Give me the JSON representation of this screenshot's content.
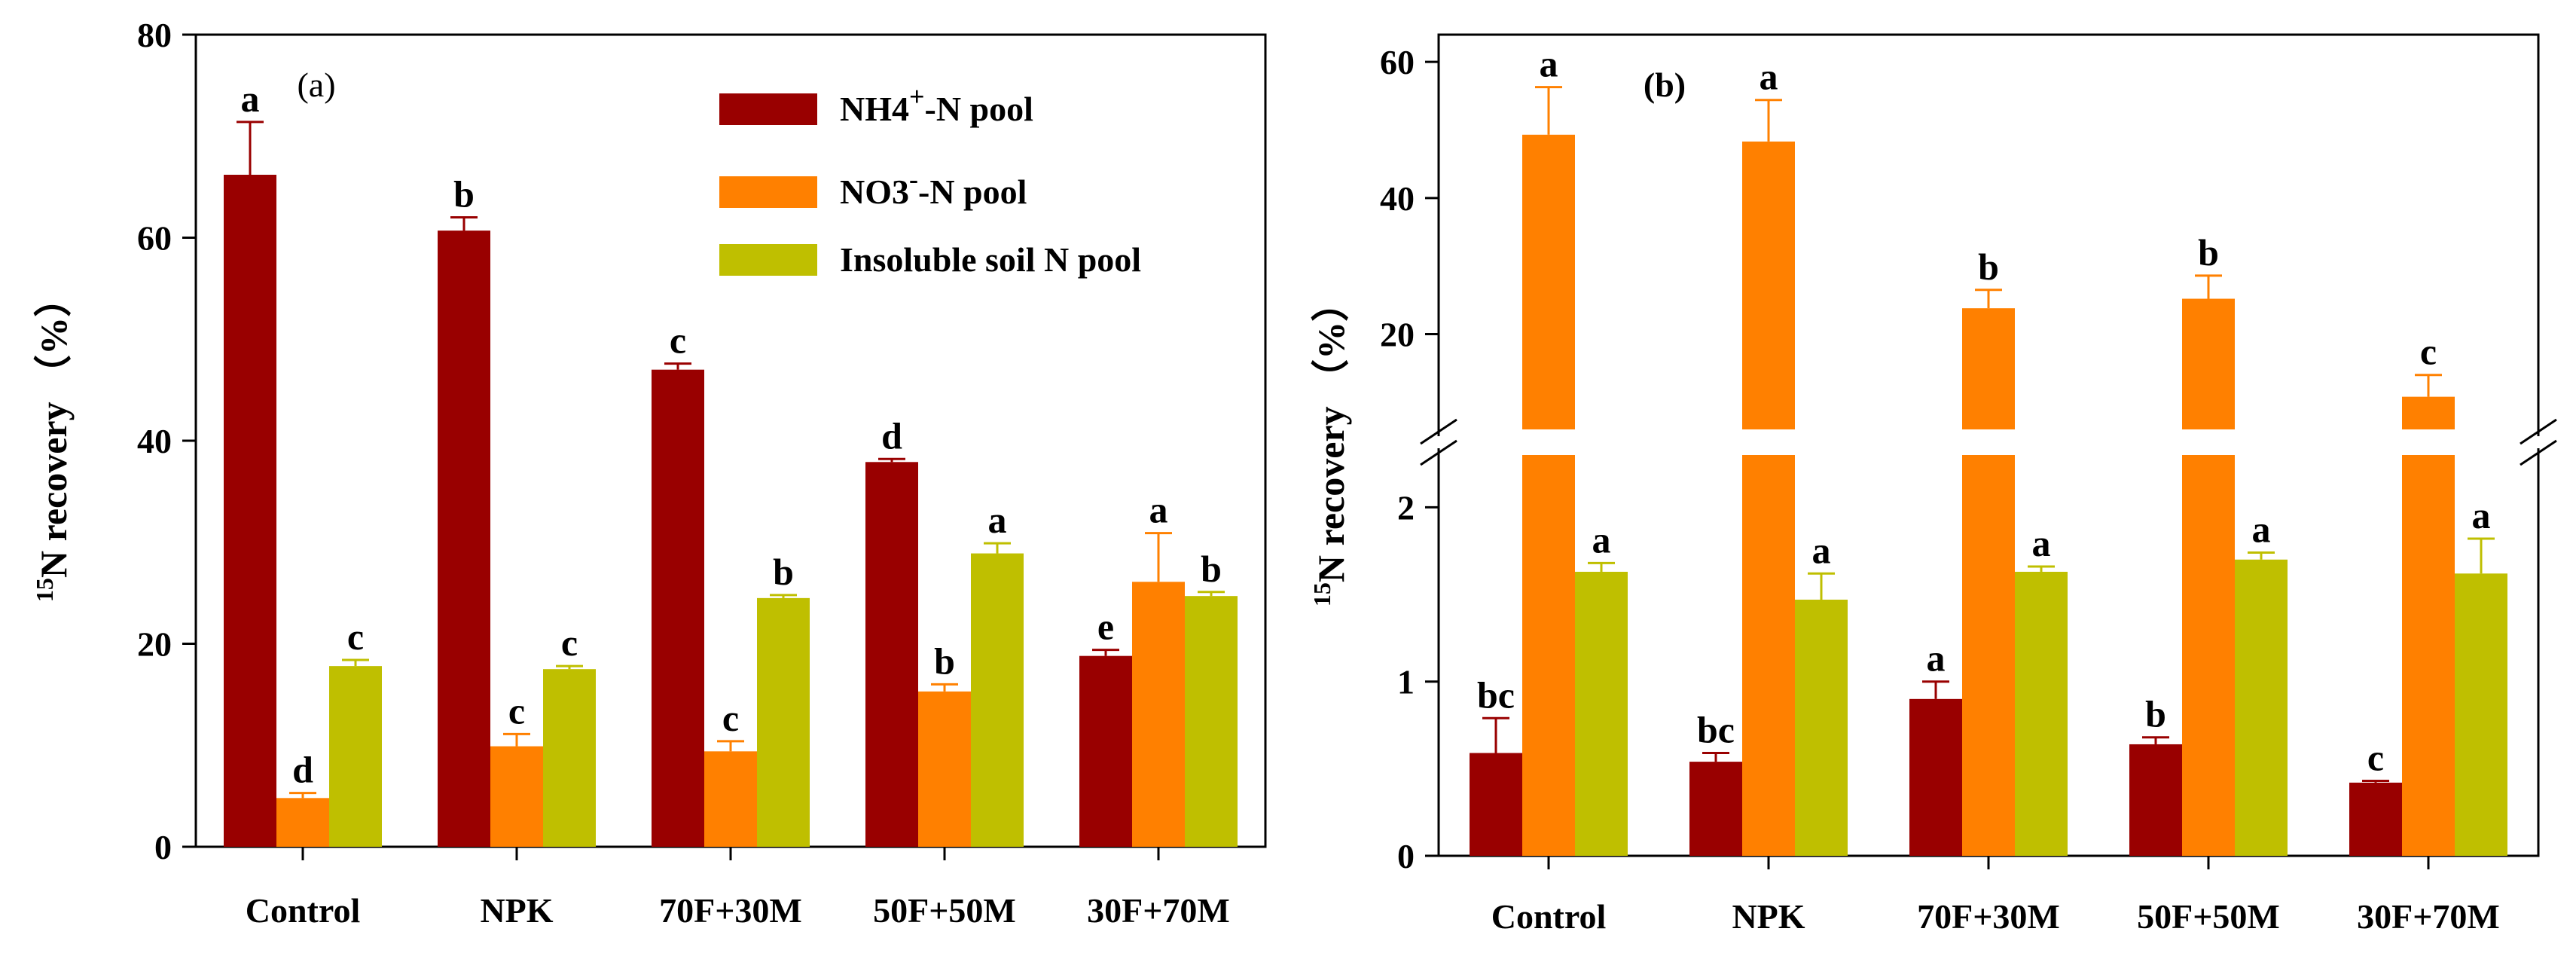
{
  "chart_data": [
    {
      "type": "bar",
      "panel_label": "(a)",
      "categories": [
        "Control",
        "NPK",
        "70F+30M",
        "50F+50M",
        "30F+70M"
      ],
      "ylabel_sup": "15",
      "ylabel": "N recovery （%）",
      "ylim": [
        0,
        80
      ],
      "yticks": [
        "0",
        "20",
        "40",
        "60",
        "80"
      ],
      "ytick_values": [
        0,
        20,
        40,
        60,
        80
      ],
      "legend": [
        {
          "prefix": "NH4",
          "sup": "+",
          "suffix": "-N pool"
        },
        {
          "prefix": "NO3",
          "sup": "-",
          "suffix": "-N pool"
        },
        {
          "prefix": "Insoluble soil N pool",
          "sup": "",
          "suffix": ""
        }
      ],
      "series": [
        {
          "name": "NH4+-N pool",
          "color": "#990000",
          "values": [
            66.2,
            60.7,
            47.0,
            37.9,
            18.8
          ],
          "errors": [
            5.2,
            1.3,
            0.6,
            0.3,
            0.6
          ],
          "letters": [
            "a",
            "b",
            "c",
            "d",
            "e"
          ]
        },
        {
          "name": "NO3--N pool",
          "color": "#ff8000",
          "values": [
            4.8,
            9.9,
            9.4,
            15.3,
            26.1
          ],
          "errors": [
            0.5,
            1.2,
            1.0,
            0.7,
            4.8
          ],
          "letters": [
            "d",
            "c",
            "c",
            "b",
            "a"
          ]
        },
        {
          "name": "Insoluble soil N pool",
          "color": "#bfbf00",
          "values": [
            17.8,
            17.5,
            24.5,
            28.9,
            24.7
          ],
          "errors": [
            0.6,
            0.3,
            0.3,
            1.0,
            0.4
          ],
          "letters": [
            "c",
            "c",
            "b",
            "a",
            "b"
          ]
        }
      ]
    },
    {
      "type": "bar",
      "panel_label": "(b)",
      "categories": [
        "Control",
        "NPK",
        "70F+30M",
        "50F+50M",
        "30F+70M"
      ],
      "ylabel_sup": "15",
      "ylabel": "N recovery （%）",
      "axis_break": true,
      "lower_ylim": [
        0,
        2.3
      ],
      "upper_ylim": [
        6,
        64
      ],
      "lower_yticks": [
        "0",
        "1",
        "2"
      ],
      "lower_ytick_values": [
        0,
        1,
        2
      ],
      "upper_yticks": [
        "20",
        "40",
        "60"
      ],
      "upper_ytick_values": [
        20,
        40,
        60
      ],
      "series": [
        {
          "name": "NH4+-N pool",
          "color": "#990000",
          "values": [
            0.59,
            0.54,
            0.9,
            0.64,
            0.42
          ],
          "errors": [
            0.2,
            0.05,
            0.1,
            0.04,
            0.01
          ],
          "letters": [
            "bc",
            "bc",
            "a",
            "b",
            "c"
          ]
        },
        {
          "name": "NO3--N pool",
          "color": "#ff8000",
          "values": [
            49.3,
            48.3,
            23.8,
            25.2,
            10.8
          ],
          "errors": [
            7.0,
            6.1,
            2.7,
            3.4,
            3.2
          ],
          "letters": [
            "a",
            "a",
            "b",
            "b",
            "c"
          ]
        },
        {
          "name": "Insoluble soil N pool",
          "color": "#bfbf00",
          "values": [
            1.63,
            1.47,
            1.63,
            1.7,
            1.62
          ],
          "errors": [
            0.05,
            0.15,
            0.03,
            0.04,
            0.2
          ],
          "letters": [
            "a",
            "a",
            "a",
            "a",
            "a"
          ]
        }
      ]
    }
  ]
}
